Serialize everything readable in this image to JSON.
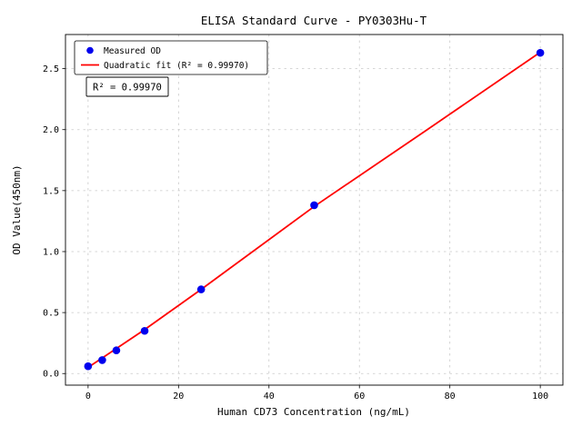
{
  "figure": {
    "background": "#ffffff",
    "plot_bg": "#ffffff",
    "grid_color": "#c9c9c9",
    "spine_color": "#000000"
  },
  "chart_data": {
    "type": "scatter",
    "title": "ELISA Standard Curve - PY0303Hu-T",
    "xlabel": "Human CD73 Concentration (ng/mL)",
    "ylabel": "OD Value(450nm)",
    "x_ticks": [
      0,
      20,
      40,
      60,
      80,
      100
    ],
    "x_tick_labels": [
      "0",
      "20",
      "40",
      "60",
      "80",
      "100"
    ],
    "y_ticks": [
      0.0,
      0.5,
      1.0,
      1.5,
      2.0,
      2.5
    ],
    "y_tick_labels": [
      "0.0",
      "0.5",
      "1.0",
      "1.5",
      "2.0",
      "2.5"
    ],
    "xlim": [
      -5,
      105
    ],
    "ylim": [
      -0.095,
      2.78
    ],
    "grid": true,
    "grid_style": "dashed",
    "legend_position": "upper-left",
    "series": [
      {
        "name": "Measured OD",
        "type": "scatter",
        "color": "#0000ee",
        "x": [
          0,
          3.125,
          6.25,
          12.5,
          25,
          50,
          100
        ],
        "y": [
          0.06,
          0.11,
          0.19,
          0.35,
          0.69,
          1.38,
          2.63
        ]
      },
      {
        "name": "Quadratic fit (R² = 0.99970)",
        "type": "line",
        "color": "#ff0000",
        "x": [
          0,
          12.5,
          25,
          50,
          75,
          100
        ],
        "y": [
          0.05,
          0.36,
          0.69,
          1.37,
          2.0,
          2.635
        ]
      }
    ],
    "annotation": "R² = 0.99970",
    "r_squared": 0.9997
  }
}
